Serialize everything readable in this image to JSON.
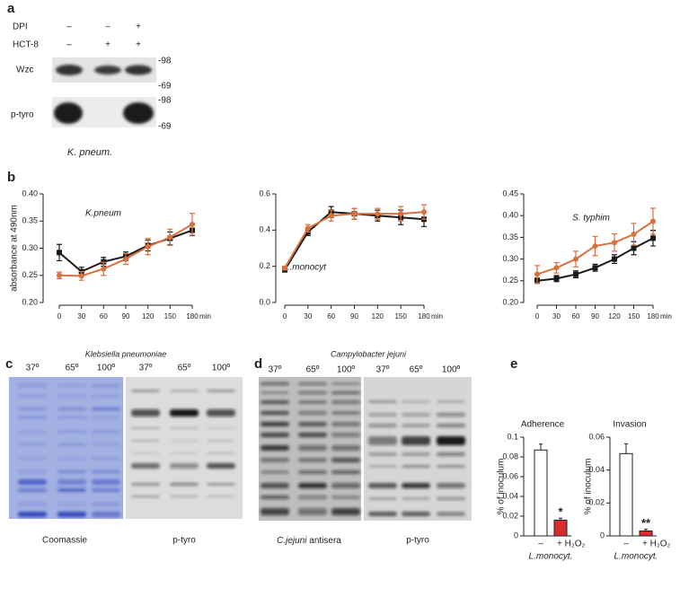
{
  "panel_labels": [
    "a",
    "b",
    "c",
    "d",
    "e"
  ],
  "panel_a": {
    "rows": [
      {
        "label": "DPI",
        "signs": [
          "–",
          "–",
          "+"
        ]
      },
      {
        "label": "HCT-8",
        "signs": [
          "–",
          "+",
          "+"
        ]
      }
    ],
    "blots": [
      {
        "label": "Wzc",
        "markers": [
          "-98",
          "-69"
        ]
      },
      {
        "label": "p-tyro",
        "markers": [
          "-98",
          "-69"
        ]
      }
    ],
    "caption": "K. pneum."
  },
  "chart_data": [
    {
      "type": "line",
      "title": "K.pneum",
      "ylabel": "absorbance at 490nm",
      "categories": [
        "0",
        "30",
        "60",
        "90",
        "120",
        "150",
        "180"
      ],
      "x_unit": "min",
      "ylim": [
        0.2,
        0.4
      ],
      "yticks": [
        {
          "value": 0.2,
          "label": "0.20"
        },
        0.25,
        {
          "value": 0.3,
          "label": "0.30"
        },
        0.35,
        {
          "value": 0.4,
          "label": "0.40"
        }
      ],
      "series": [
        {
          "color": "#1a1a1a",
          "values": [
            0.292,
            0.257,
            0.275,
            0.285,
            0.305,
            0.318,
            0.333
          ],
          "errors": [
            0.015,
            0.008,
            0.008,
            0.008,
            0.01,
            0.012,
            0.01
          ]
        },
        {
          "color": "#d9713f",
          "values": [
            0.25,
            0.249,
            0.262,
            0.28,
            0.303,
            0.32,
            0.344
          ],
          "errors": [
            0.006,
            0.008,
            0.012,
            0.01,
            0.015,
            0.015,
            0.02
          ]
        }
      ]
    },
    {
      "type": "line",
      "title": "L.monocyt",
      "categories": [
        "0",
        "30",
        "60",
        "90",
        "120",
        "150",
        "180"
      ],
      "x_unit": "min",
      "ylim": [
        0,
        0.6
      ],
      "yticks": [
        {
          "value": 0,
          "label": "0.0"
        },
        0.2,
        0.4,
        0.6
      ],
      "series": [
        {
          "color": "#1a1a1a",
          "values": [
            0.18,
            0.39,
            0.5,
            0.49,
            0.48,
            0.47,
            0.46
          ],
          "errors": [
            0.01,
            0.02,
            0.03,
            0.03,
            0.03,
            0.04,
            0.04
          ]
        },
        {
          "color": "#d9713f",
          "values": [
            0.19,
            0.41,
            0.48,
            0.49,
            0.49,
            0.49,
            0.5
          ],
          "errors": [
            0.01,
            0.02,
            0.03,
            0.03,
            0.03,
            0.04,
            0.04
          ]
        }
      ]
    },
    {
      "type": "line",
      "title": "S. typhim",
      "categories": [
        "0",
        "30",
        "60",
        "90",
        "120",
        "150",
        "180"
      ],
      "x_unit": "min",
      "ylim": [
        0.2,
        0.45
      ],
      "yticks": [
        {
          "value": 0.2,
          "label": "0.20"
        },
        0.25,
        {
          "value": 0.3,
          "label": "0.30"
        },
        0.35,
        {
          "value": 0.4,
          "label": "0.40"
        },
        0.45
      ],
      "series": [
        {
          "color": "#1a1a1a",
          "values": [
            0.25,
            0.255,
            0.265,
            0.28,
            0.3,
            0.325,
            0.348
          ],
          "errors": [
            0.006,
            0.007,
            0.008,
            0.008,
            0.01,
            0.015,
            0.018
          ]
        },
        {
          "color": "#d9713f",
          "values": [
            0.265,
            0.28,
            0.3,
            0.33,
            0.338,
            0.357,
            0.387
          ],
          "errors": [
            0.02,
            0.012,
            0.018,
            0.022,
            0.02,
            0.025,
            0.03
          ]
        }
      ]
    },
    {
      "type": "bar",
      "title": "Adherence",
      "ylabel": "% of inoculum",
      "xlabel": "L.monocyt.",
      "categories": [
        "–",
        "+ H₂O₂"
      ],
      "values": [
        0.087,
        0.016
      ],
      "errors": [
        0.006,
        0.002
      ],
      "colors": [
        "#ffffff",
        "#d62d2d"
      ],
      "annotation": "*",
      "ylim": [
        0,
        0.1
      ],
      "yticks": [
        0,
        0.02,
        0.04,
        0.06,
        0.08,
        0.1
      ]
    },
    {
      "type": "bar",
      "title": "Invasion",
      "ylabel": "% of inoculum",
      "xlabel": "L.monocyt.",
      "categories": [
        "–",
        "+ H₂O₂"
      ],
      "values": [
        0.05,
        0.003
      ],
      "errors": [
        0.006,
        0.001
      ],
      "colors": [
        "#ffffff",
        "#d62d2d"
      ],
      "annotation": "**",
      "ylim": [
        0,
        0.06
      ],
      "yticks": [
        0,
        0.02,
        0.04,
        0.06
      ]
    }
  ],
  "panel_c": {
    "title": "Klebsiella pneumoniae",
    "lanes": [
      "37º",
      "65º",
      "100º",
      "37º",
      "65º",
      "100º"
    ],
    "captions": [
      "Coomassie",
      "p-tyro"
    ]
  },
  "panel_d": {
    "title": "Campylobacter jejuni",
    "lanes": [
      "37º",
      "65º",
      "100º",
      "37º",
      "65º",
      "100º"
    ],
    "caption_species": "C.jejuni",
    "captions": [
      "antisera",
      "p-tyro"
    ]
  }
}
